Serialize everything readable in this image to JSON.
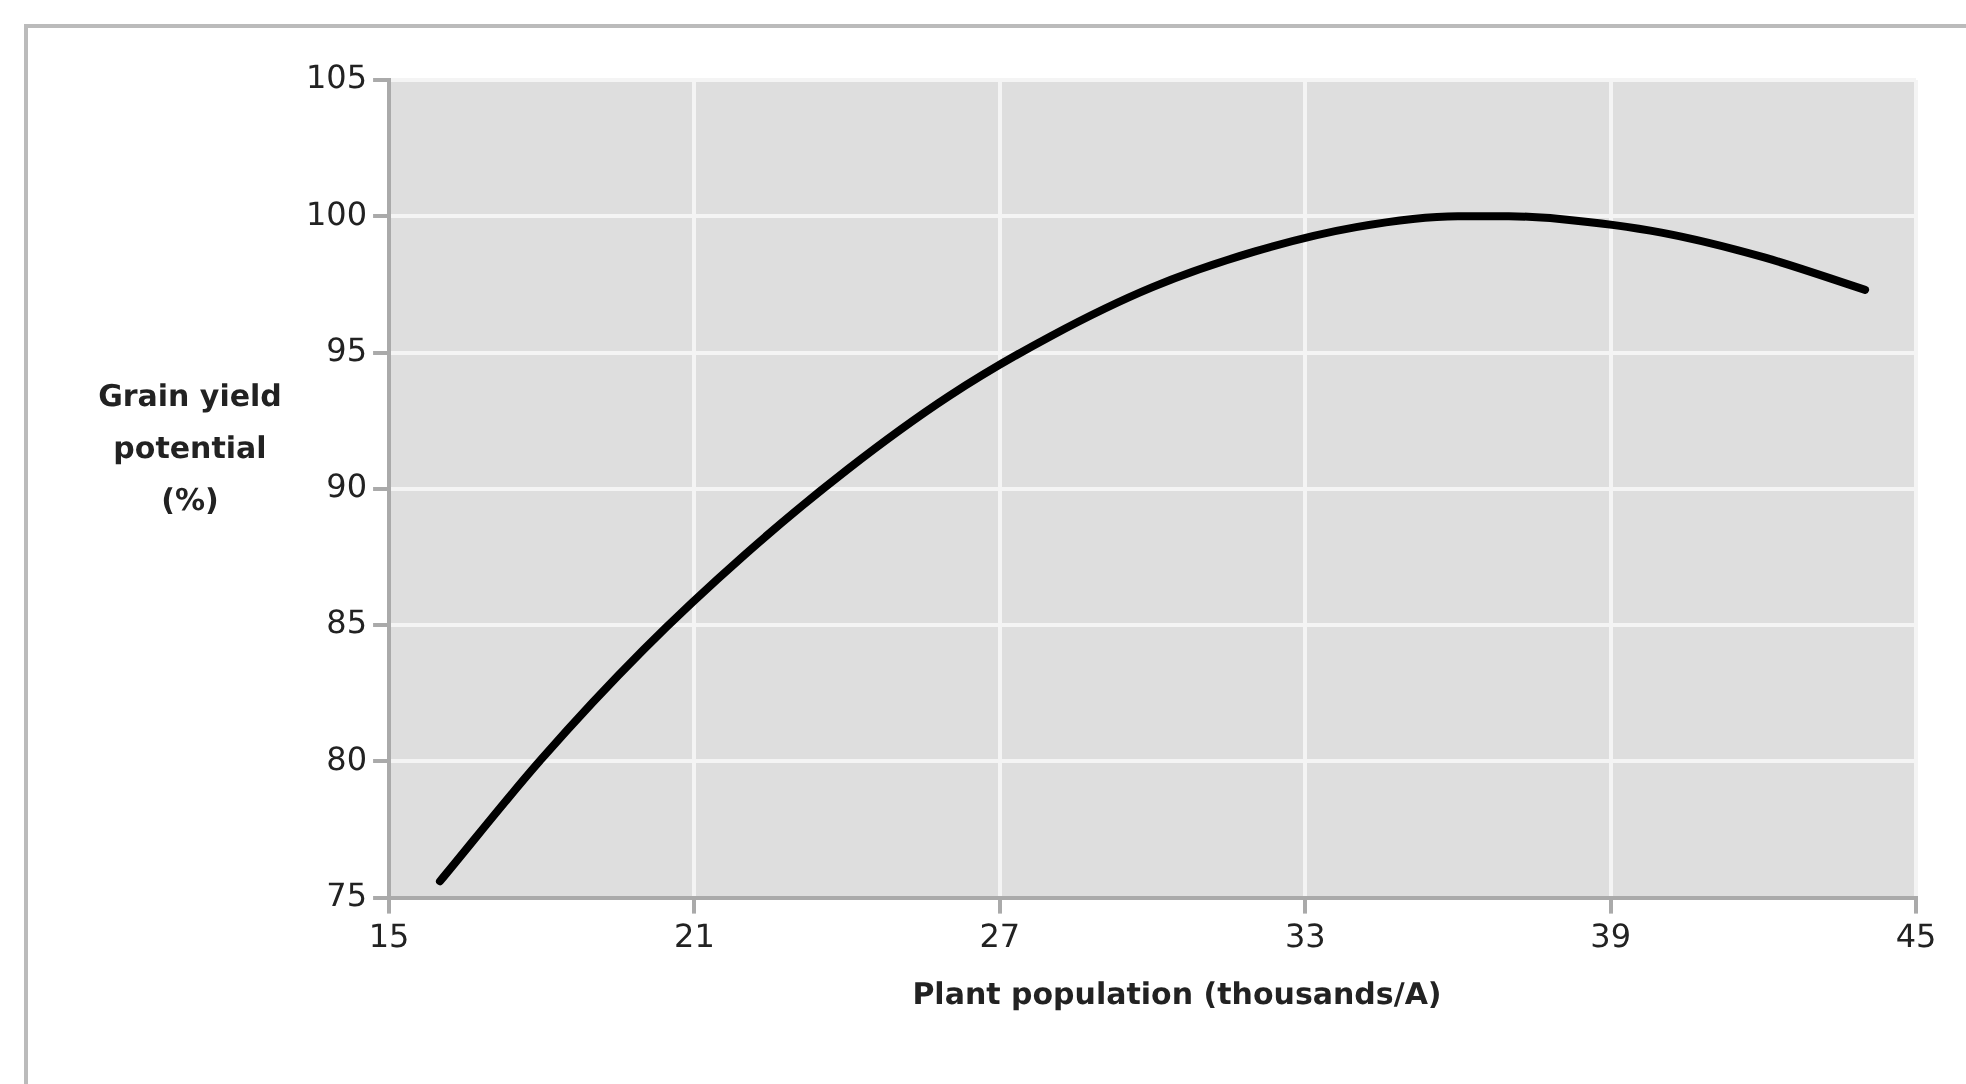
{
  "chart_data": {
    "type": "line",
    "xlabel": "Plant population (thousands/A)",
    "ylabel": "Grain yield potential (%)",
    "x": [
      16,
      18,
      20,
      22,
      24,
      26,
      28,
      30,
      32,
      34,
      36,
      37,
      38,
      40,
      42,
      44
    ],
    "series": [
      {
        "color": "#000000",
        "values": [
          75.6,
          80.1,
          84.1,
          87.6,
          90.7,
          93.4,
          95.6,
          97.4,
          98.7,
          99.6,
          100.0,
          100.0,
          99.9,
          99.4,
          98.5,
          97.3
        ]
      }
    ],
    "xlim": [
      15,
      45
    ],
    "xticks": [
      15,
      21,
      27,
      33,
      39,
      45
    ],
    "ylim": [
      75,
      105
    ],
    "yticks": [
      75,
      80,
      85,
      90,
      95,
      100,
      105
    ],
    "grid": true,
    "legend": false,
    "marker": "none",
    "line_style": "solid"
  }
}
